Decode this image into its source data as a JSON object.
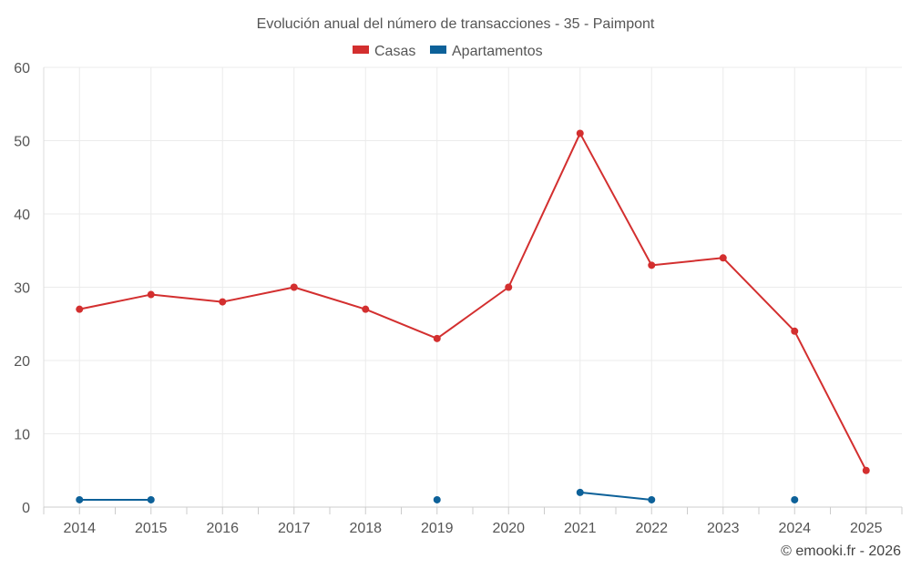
{
  "chart_data": {
    "type": "line",
    "title": "Evolución anual del número de transacciones - 35 - Paimpont",
    "categories": [
      "2014",
      "2015",
      "2016",
      "2017",
      "2018",
      "2019",
      "2020",
      "2021",
      "2022",
      "2023",
      "2024",
      "2025"
    ],
    "ylim": [
      0,
      60
    ],
    "yticks": [
      0,
      10,
      20,
      30,
      40,
      50,
      60
    ],
    "xlabel": "",
    "ylabel": "",
    "grid": true,
    "legend_position": "top-center",
    "series": [
      {
        "name": "Casas",
        "color": "#d32f2f",
        "values": [
          27,
          29,
          28,
          30,
          27,
          23,
          30,
          51,
          33,
          34,
          24,
          5
        ]
      },
      {
        "name": "Apartamentos",
        "color": "#0d6199",
        "values": [
          1,
          1,
          null,
          null,
          null,
          1,
          null,
          2,
          1,
          null,
          1,
          null
        ]
      }
    ]
  },
  "credit": "© emooki.fr - 2026"
}
